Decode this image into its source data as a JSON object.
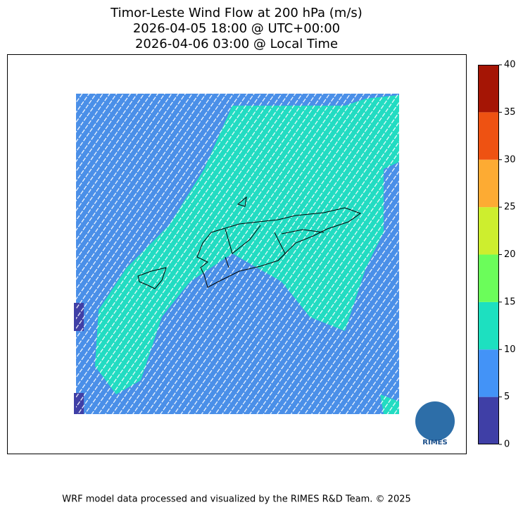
{
  "title": [
    "Timor-Leste Wind Flow at 200 hPa (m/s)",
    "2026-04-05 18:00 @ UTC+00:00",
    "2026-04-06 03:00 @ Local Time"
  ],
  "colorbar": {
    "lim": [
      0,
      40
    ],
    "ticks": [
      0,
      5,
      10,
      15,
      20,
      25,
      30,
      35,
      40
    ],
    "colors": [
      "#3f3fa6",
      "#4393f7",
      "#1de0c0",
      "#6bfd5a",
      "#cdee2e",
      "#fdab33",
      "#ee5212",
      "#a51505"
    ]
  },
  "logo_text": "RIMES",
  "footer": "WRF model data processed and visualized by the RIMES R&D Team. © 2025"
}
